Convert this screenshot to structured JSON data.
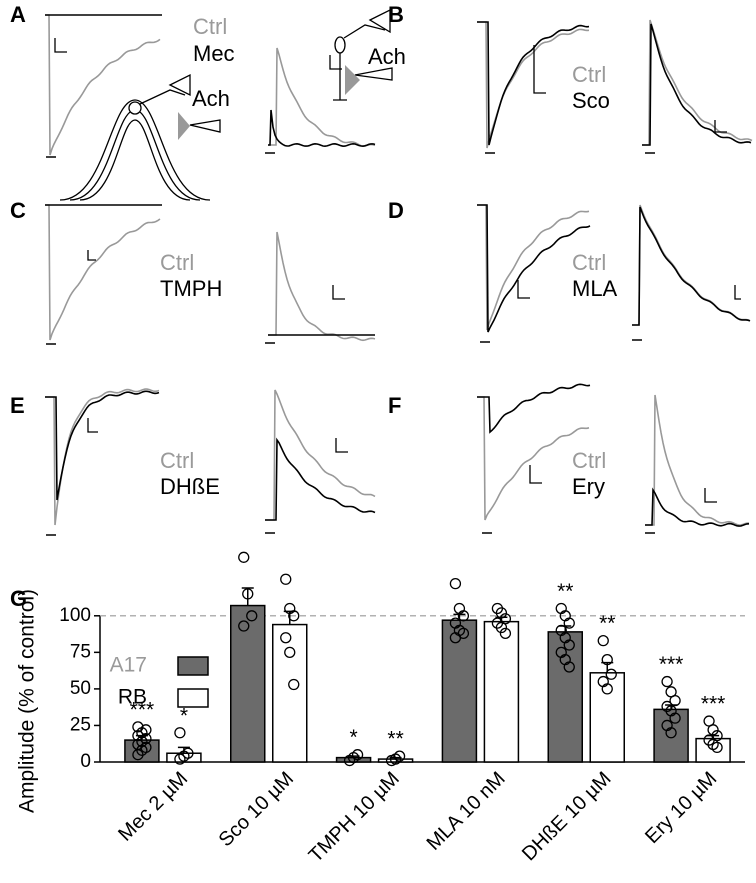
{
  "panels": [
    {
      "label": "A",
      "ctrl": "Ctrl",
      "drug": "Mec"
    },
    {
      "label": "B",
      "ctrl": "Ctrl",
      "drug": "Sco"
    },
    {
      "label": "C",
      "ctrl": "Ctrl",
      "drug": "TMPH"
    },
    {
      "label": "D",
      "ctrl": "Ctrl",
      "drug": "MLA"
    },
    {
      "label": "E",
      "ctrl": "Ctrl",
      "drug": "DHßE"
    },
    {
      "label": "F",
      "ctrl": "Ctrl",
      "drug": "Ery"
    }
  ],
  "annotations": [
    "Ach",
    "Ach"
  ],
  "chart_data": {
    "type": "bar",
    "label": "G",
    "ylabel": "Amplitude (% of control)",
    "categories": [
      "Mec 2 µM",
      "Sco 10 µM",
      "TMPH 10 µM",
      "MLA 10 nM",
      "DHßE 10 µM",
      "Ery 10 µM"
    ],
    "series": [
      {
        "name": "A17",
        "color": "#6b6b6b",
        "values": [
          15,
          107,
          3,
          97,
          89,
          36
        ],
        "errors": [
          3,
          12,
          1,
          4,
          4,
          3
        ],
        "significance": [
          "***",
          null,
          "*",
          null,
          "**",
          "***"
        ],
        "points": [
          [
            5,
            8,
            10,
            12,
            14,
            16,
            18,
            20,
            22,
            24
          ],
          [
            140,
            115,
            100,
            93
          ],
          [
            1,
            3,
            5
          ],
          [
            122,
            105,
            100,
            95,
            90,
            88,
            85
          ],
          [
            105,
            100,
            95,
            90,
            85,
            80,
            75,
            70,
            65
          ],
          [
            55,
            48,
            42,
            38,
            35,
            30,
            25,
            20
          ]
        ]
      },
      {
        "name": "RB",
        "color": "#ffffff",
        "values": [
          6,
          94,
          2,
          96,
          61,
          16
        ],
        "errors": [
          4,
          9,
          1,
          3,
          7,
          2
        ],
        "significance": [
          "*",
          null,
          "**",
          null,
          "**",
          "***"
        ],
        "points": [
          [
            2,
            4,
            6,
            20
          ],
          [
            125,
            105,
            100,
            85,
            75,
            53
          ],
          [
            1,
            2,
            4
          ],
          [
            105,
            102,
            98,
            95,
            92,
            88
          ],
          [
            83,
            70,
            60,
            55,
            50
          ],
          [
            28,
            22,
            18,
            15,
            12,
            10
          ]
        ]
      }
    ],
    "ylim": [
      0,
      145
    ],
    "yticks": [
      0,
      25,
      50,
      75,
      100
    ],
    "reference_line": 100
  }
}
